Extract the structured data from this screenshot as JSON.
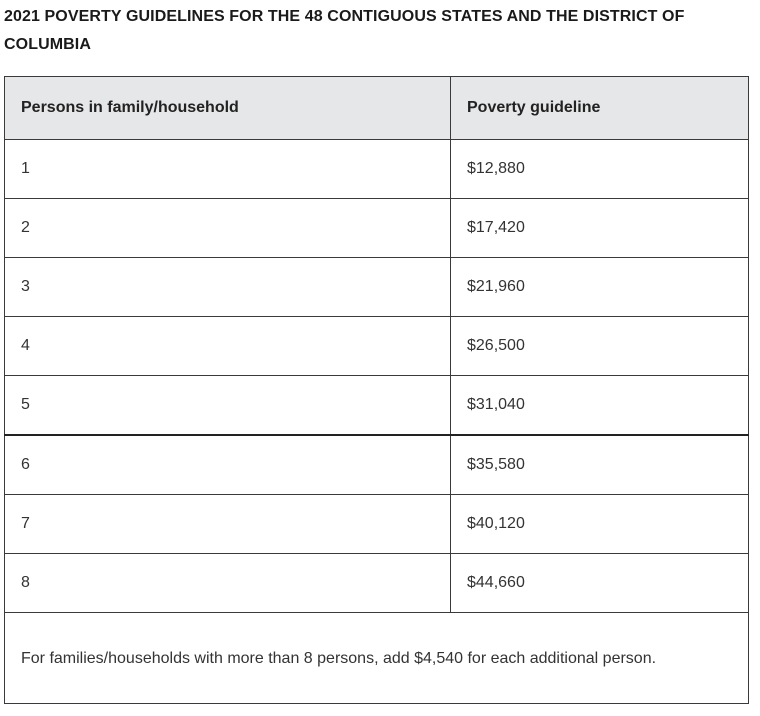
{
  "title": "2021 POVERTY GUIDELINES FOR THE 48 CONTIGUOUS STATES AND THE DISTRICT OF COLUMBIA",
  "table": {
    "headers": [
      "Persons in family/household",
      "Poverty guideline"
    ],
    "rows": [
      [
        "1",
        "$12,880"
      ],
      [
        "2",
        "$17,420"
      ],
      [
        "3",
        "$21,960"
      ],
      [
        "4",
        "$26,500"
      ],
      [
        "5",
        "$31,040"
      ],
      [
        "6",
        "$35,580"
      ],
      [
        "7",
        "$40,120"
      ],
      [
        "8",
        "$44,660"
      ]
    ],
    "footnote": "For families/households with more than 8 persons, add $4,540 for each additional person."
  }
}
